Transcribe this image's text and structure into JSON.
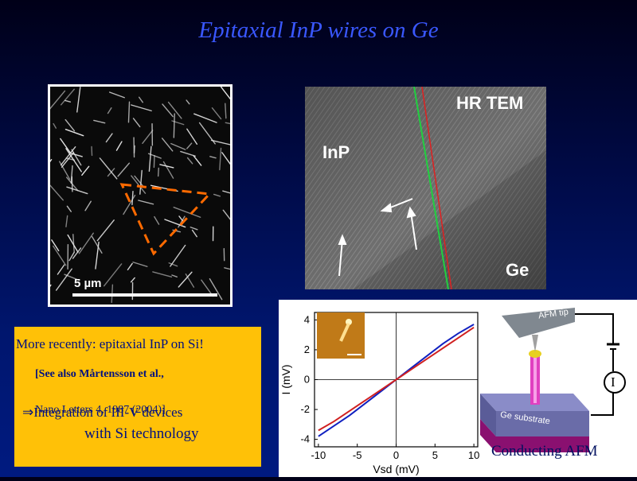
{
  "title": "Epitaxial InP wires on Ge",
  "sem": {
    "scale_bar": "5 µm"
  },
  "tem": {
    "label_hr": "HR TEM",
    "label_top": "InP",
    "label_bottom": "Ge"
  },
  "note": {
    "line1": "More recently: epitaxial InP on Si!",
    "line2": "[See also  Mårtensson et al.,",
    "line3": "Nano Letters 4, 1987 (2004)]",
    "line4": "⇒Integration of III-V devices",
    "line5": "with Si technology"
  },
  "iv": {
    "caption": "Conducting AFM",
    "afm_tip": "AFM tip",
    "substrate": "Ge substrate",
    "meter": "I"
  },
  "chart_data": {
    "type": "line",
    "xlabel": "Vsd (mV)",
    "ylabel": "I (mV)",
    "xlim": [
      -10.5,
      10.5
    ],
    "ylim": [
      -4.5,
      4.5
    ],
    "xticks": [
      "-10",
      "-5",
      "0",
      "5",
      "10"
    ],
    "yticks": [
      "4",
      "2",
      "0",
      "-2",
      "-4"
    ],
    "series": [
      {
        "color": "#1020c0",
        "x": [
          -10,
          -8,
          -6,
          -4,
          -2,
          0,
          2,
          4,
          6,
          8,
          10
        ],
        "y": [
          -3.8,
          -3.1,
          -2.4,
          -1.6,
          -0.8,
          0,
          0.8,
          1.6,
          2.4,
          3.1,
          3.7
        ]
      },
      {
        "color": "#d02020",
        "x": [
          -10,
          -8,
          -6,
          -4,
          -2,
          0,
          2,
          4,
          6,
          8,
          10
        ],
        "y": [
          -3.4,
          -2.8,
          -2.1,
          -1.4,
          -0.7,
          0,
          0.7,
          1.4,
          2.1,
          2.8,
          3.5
        ]
      }
    ]
  }
}
